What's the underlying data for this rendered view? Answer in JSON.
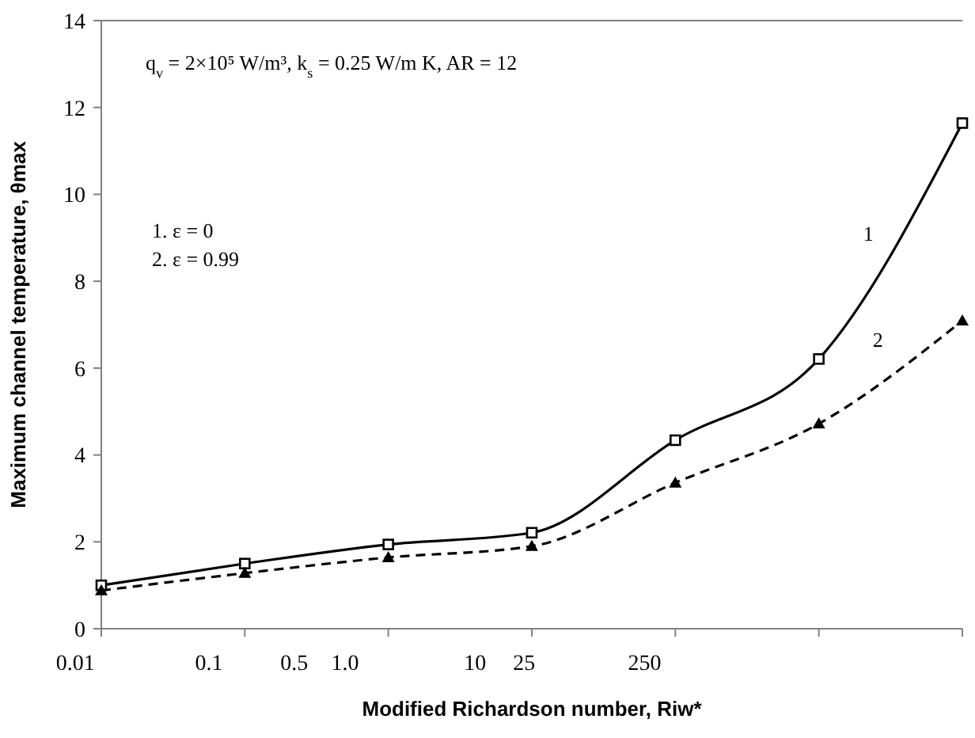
{
  "chart_data": {
    "type": "line",
    "xlabel": "Modified Richardson number, Riw*",
    "ylabel": "Maximum channel temperature, θmax",
    "categories": [
      null,
      null,
      null,
      null,
      null,
      null,
      null
    ],
    "ylim": [
      0,
      14
    ],
    "yticks": [
      0,
      2,
      4,
      6,
      8,
      10,
      12,
      14
    ],
    "series": [
      {
        "name": "1",
        "color": "#000000",
        "marker": "square",
        "line_style": "solid",
        "values": [
          1.0,
          1.5,
          1.94,
          2.21,
          4.34,
          6.21,
          11.64
        ]
      },
      {
        "name": "2",
        "color": "#000000",
        "marker": "triangle",
        "line_style": "dashed",
        "values": [
          0.88,
          1.28,
          1.64,
          1.9,
          3.36,
          4.72,
          7.09
        ]
      }
    ],
    "annotations": [
      "q$_{v}$ = 2×10⁵ W/m³, k$_{s}$ = 0.25 W/m K, AR = 12",
      "1. ε = 0",
      "2. ε = 0.99",
      "0.01",
      "0.1",
      "0.5",
      "1.0",
      "10",
      "25",
      "250"
    ]
  }
}
